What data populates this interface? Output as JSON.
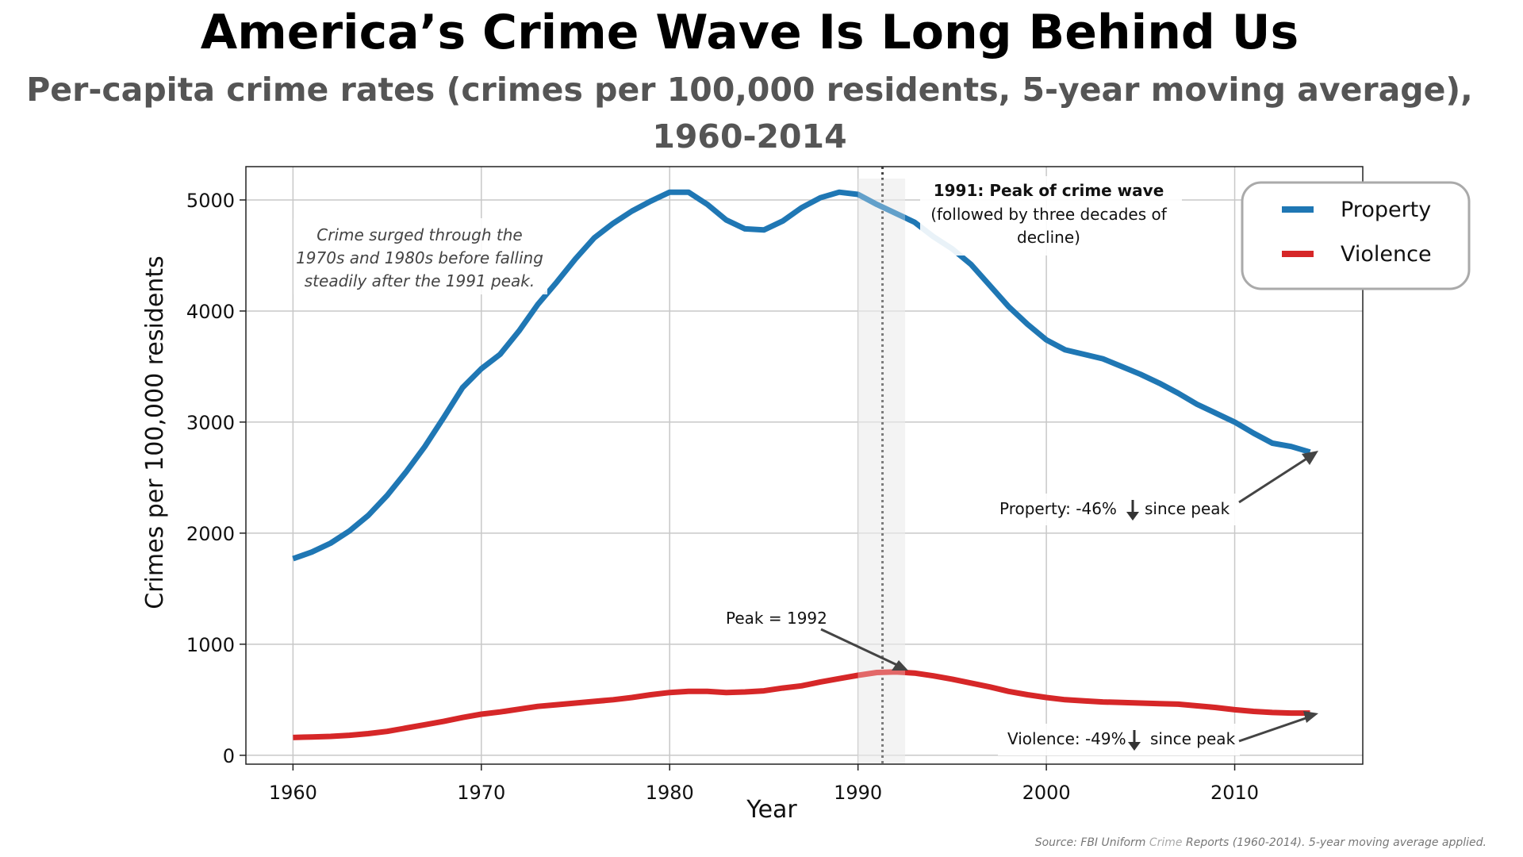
{
  "chart_data": {
    "type": "line",
    "title": "America’s Crime Wave Is Long Behind Us",
    "subtitle_line1": "Per-capita crime rates (crimes per 100,000 residents, 5-year moving average),",
    "subtitle_line2": "1960-2014",
    "xlabel": "Year",
    "ylabel": "Crimes per 100,000 residents",
    "xlim": [
      1957.5,
      2016.8
    ],
    "ylim": [
      -80,
      5300
    ],
    "xticks": [
      1960,
      1970,
      1980,
      1990,
      2000,
      2010
    ],
    "yticks": [
      0,
      1000,
      2000,
      3000,
      4000,
      5000
    ],
    "grid": true,
    "legend_position": "top-right",
    "x": [
      1960,
      1961,
      1962,
      1963,
      1964,
      1965,
      1966,
      1967,
      1968,
      1969,
      1970,
      1971,
      1972,
      1973,
      1974,
      1975,
      1976,
      1977,
      1978,
      1979,
      1980,
      1981,
      1982,
      1983,
      1984,
      1985,
      1986,
      1987,
      1988,
      1989,
      1990,
      1991,
      1992,
      1993,
      1994,
      1995,
      1996,
      1997,
      1998,
      1999,
      2000,
      2001,
      2002,
      2003,
      2004,
      2005,
      2006,
      2007,
      2008,
      2009,
      2010,
      2011,
      2012,
      2013,
      2014
    ],
    "series": [
      {
        "name": "Property",
        "color": "#1f77b4",
        "values": [
          1770,
          1830,
          1910,
          2020,
          2160,
          2340,
          2550,
          2780,
          3040,
          3310,
          3480,
          3610,
          3820,
          4060,
          4260,
          4470,
          4660,
          4790,
          4900,
          4990,
          5070,
          5070,
          4960,
          4820,
          4740,
          4730,
          4810,
          4930,
          5020,
          5070,
          5050,
          4960,
          4880,
          4800,
          4670,
          4560,
          4420,
          4230,
          4040,
          3880,
          3740,
          3650,
          3610,
          3570,
          3500,
          3430,
          3350,
          3260,
          3160,
          3080,
          3000,
          2900,
          2810,
          2780,
          2730
        ]
      },
      {
        "name": "Violence",
        "color": "#d62728",
        "values": [
          160,
          165,
          170,
          180,
          195,
          215,
          245,
          275,
          305,
          340,
          370,
          390,
          415,
          440,
          455,
          470,
          485,
          500,
          520,
          545,
          565,
          575,
          575,
          565,
          570,
          580,
          605,
          625,
          660,
          690,
          720,
          745,
          750,
          740,
          715,
          685,
          650,
          615,
          575,
          545,
          520,
          500,
          490,
          480,
          475,
          470,
          465,
          460,
          445,
          430,
          410,
          395,
          385,
          380,
          380
        ]
      }
    ],
    "highlight": {
      "band": [
        1990,
        1992.5
      ],
      "marker_line": 1991.3,
      "label_year": "1991",
      "label_bold": ": Peak of crime wave",
      "label_rest_1": "(followed by three decades of",
      "label_rest_2": "decline)"
    },
    "annotations": {
      "note_1": "Crime surged through the",
      "note_2": "1970s and 1980s before falling",
      "note_3": "steadily after the 1991 peak.",
      "violence_peak": "Peak = 1992",
      "property_change_a": "Property: -46%",
      "property_change_b": "since peak",
      "violence_change_a": "Violence: -49%",
      "violence_change_b": "since peak"
    }
  },
  "source_a": "Source: FBI Uniform ",
  "source_b": "Crime",
  "source_c": " Reports (1960-2014). 5-year moving average applied."
}
